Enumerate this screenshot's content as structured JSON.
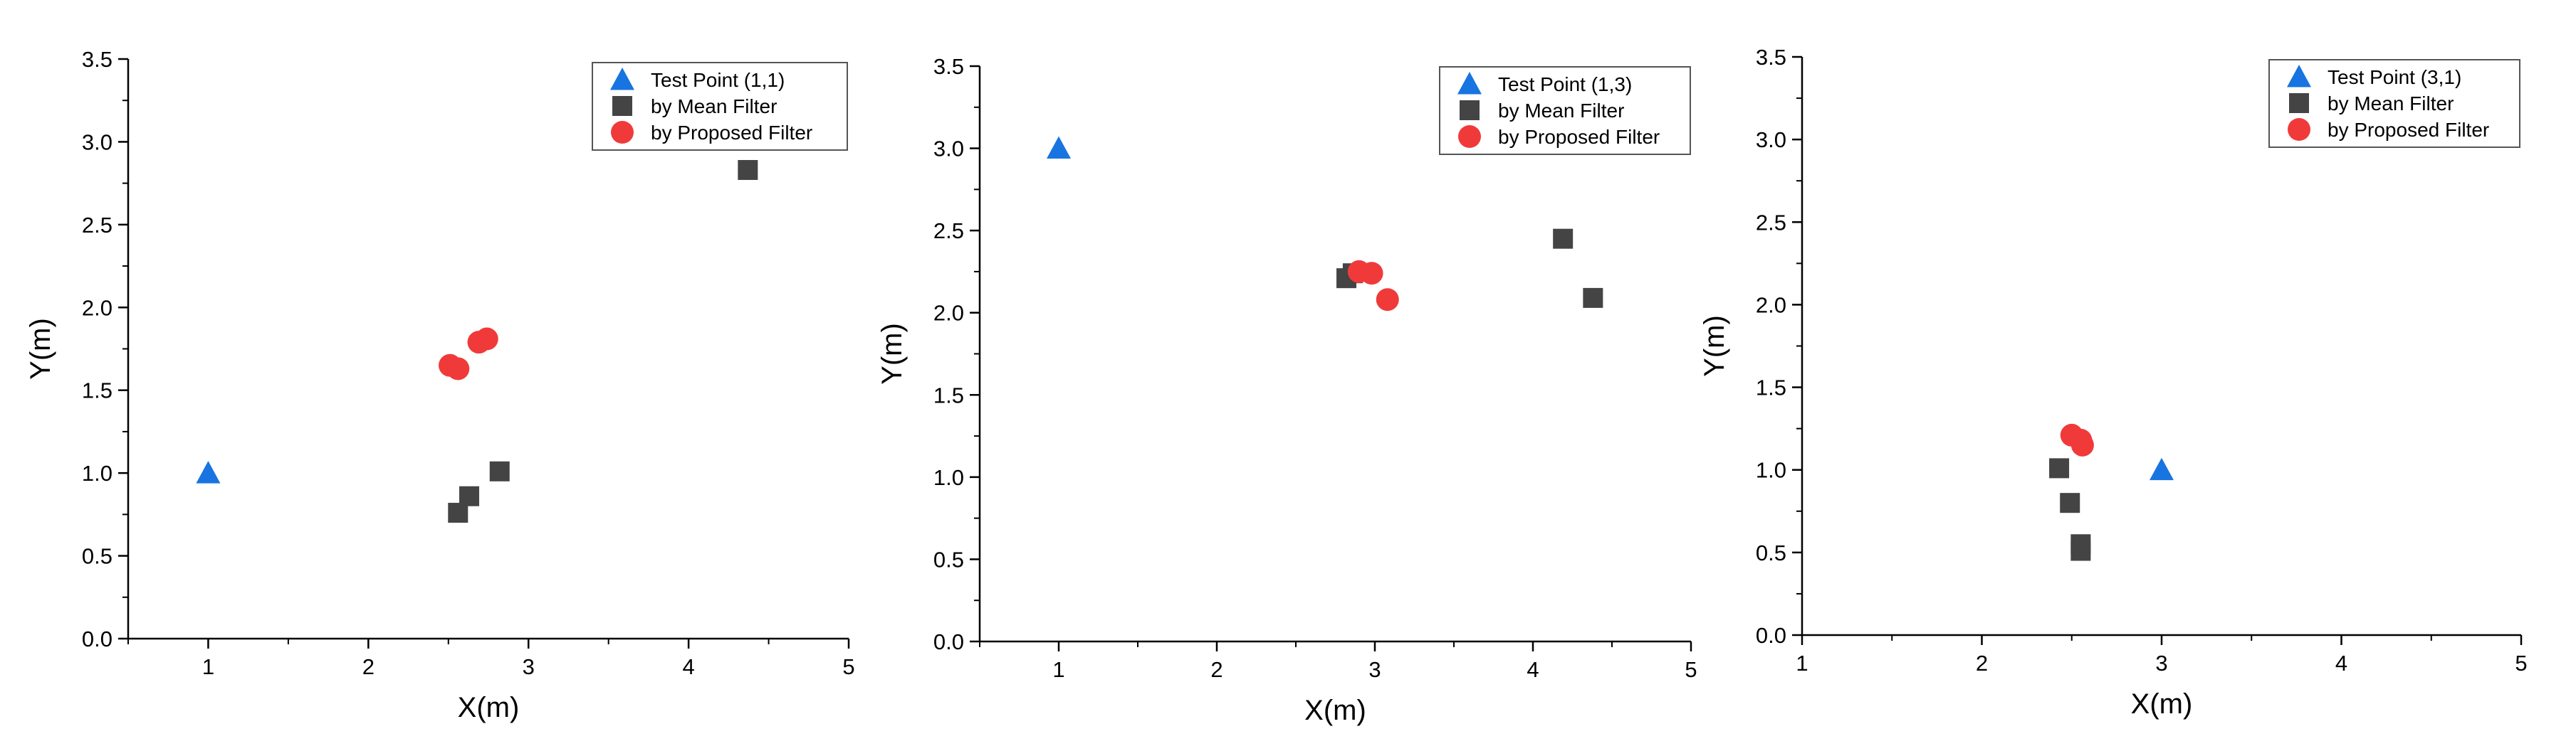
{
  "colors": {
    "test_point": "#1874E0",
    "mean_filter": "#444444",
    "proposed_filter": "#F03A3A",
    "axis": "#000000",
    "legend_border": "#555555"
  },
  "chart_data": [
    {
      "type": "scatter",
      "title": "",
      "xlabel": "X(m)",
      "ylabel": "Y(m)",
      "xlim": [
        0.5,
        5
      ],
      "ylim": [
        0,
        3.5
      ],
      "x_ticks": [
        1,
        2,
        3,
        4,
        5
      ],
      "x_tick_labels": [
        "1",
        "2",
        "3",
        "4",
        "5"
      ],
      "y_ticks": [
        0.0,
        0.5,
        1.0,
        1.5,
        2.0,
        2.5,
        3.0,
        3.5
      ],
      "y_tick_labels": [
        "0.0",
        "0.5",
        "1.0",
        "1.5",
        "2.0",
        "2.5",
        "3.0",
        "3.5"
      ],
      "legend_position": "top-right",
      "series": [
        {
          "name": "Test Point (1,1)",
          "marker": "triangle",
          "points": [
            [
              1.0,
              1.0
            ]
          ]
        },
        {
          "name": "by Mean Filter",
          "marker": "square",
          "points": [
            [
              4.37,
              2.83
            ],
            [
              2.56,
              0.76
            ],
            [
              2.63,
              0.86
            ],
            [
              2.82,
              1.01
            ]
          ]
        },
        {
          "name": "by Proposed Filter",
          "marker": "circle",
          "points": [
            [
              2.51,
              1.65
            ],
            [
              2.56,
              1.63
            ],
            [
              2.69,
              1.79
            ],
            [
              2.74,
              1.81
            ]
          ]
        }
      ]
    },
    {
      "type": "scatter",
      "title": "",
      "xlabel": "X(m)",
      "ylabel": "Y(m)",
      "xlim": [
        0.5,
        5
      ],
      "ylim": [
        0,
        3.5
      ],
      "x_ticks": [
        1,
        2,
        3,
        4,
        5
      ],
      "x_tick_labels": [
        "1",
        "2",
        "3",
        "4",
        "5"
      ],
      "y_ticks": [
        0.0,
        0.5,
        1.0,
        1.5,
        2.0,
        2.5,
        3.0,
        3.5
      ],
      "y_tick_labels": [
        "0.0",
        "0.5",
        "1.0",
        "1.5",
        "2.0",
        "2.5",
        "3.0",
        "3.5"
      ],
      "legend_position": "top-right",
      "series": [
        {
          "name": "Test Point (1,3)",
          "marker": "triangle",
          "points": [
            [
              1.0,
              3.0
            ]
          ]
        },
        {
          "name": "by Mean Filter",
          "marker": "square",
          "points": [
            [
              2.82,
              2.21
            ],
            [
              2.86,
              2.24
            ],
            [
              4.19,
              2.45
            ],
            [
              4.38,
              2.09
            ]
          ]
        },
        {
          "name": "by Proposed Filter",
          "marker": "circle",
          "points": [
            [
              2.9,
              2.25
            ],
            [
              2.98,
              2.24
            ],
            [
              3.08,
              2.08
            ]
          ]
        }
      ]
    },
    {
      "type": "scatter",
      "title": "",
      "xlabel": "X(m)",
      "ylabel": "Y(m)",
      "xlim": [
        1,
        5
      ],
      "ylim": [
        0,
        3.5
      ],
      "x_ticks": [
        1,
        2,
        3,
        4,
        5
      ],
      "x_tick_labels": [
        "1",
        "2",
        "3",
        "4",
        "5"
      ],
      "y_ticks": [
        0.0,
        0.5,
        1.0,
        1.5,
        2.0,
        2.5,
        3.0,
        3.5
      ],
      "y_tick_labels": [
        "0.0",
        "0.5",
        "1.0",
        "1.5",
        "2.0",
        "2.5",
        "3.0",
        "3.5"
      ],
      "legend_position": "top-right",
      "series": [
        {
          "name": "Test Point (3,1)",
          "marker": "triangle",
          "points": [
            [
              3.0,
              1.0
            ]
          ]
        },
        {
          "name": "by Mean Filter",
          "marker": "square",
          "points": [
            [
              2.43,
              1.01
            ],
            [
              2.49,
              0.8
            ],
            [
              2.55,
              0.55
            ],
            [
              2.55,
              0.51
            ]
          ]
        },
        {
          "name": "by Proposed Filter",
          "marker": "circle",
          "points": [
            [
              2.5,
              1.21
            ],
            [
              2.55,
              1.18
            ],
            [
              2.56,
              1.15
            ]
          ]
        }
      ]
    }
  ]
}
